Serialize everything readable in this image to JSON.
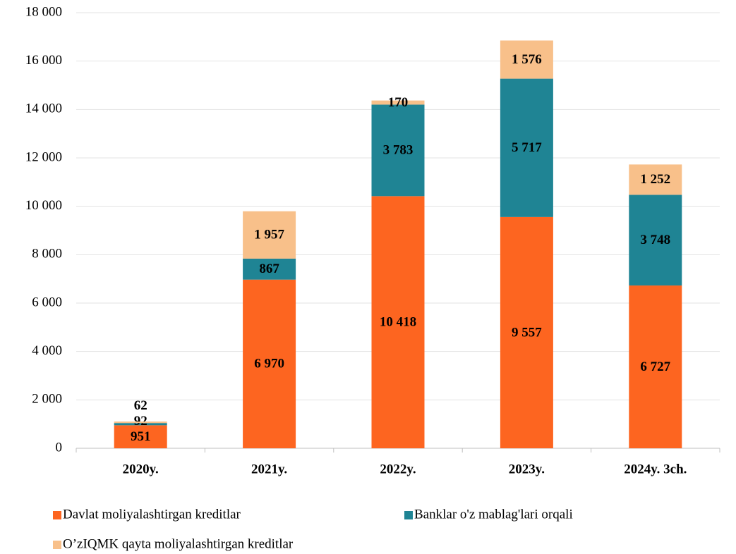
{
  "chart_data": {
    "type": "stacked_bar",
    "categories": [
      "2020y.",
      "2021y.",
      "2022y.",
      "2023y.",
      "2024y. 3ch."
    ],
    "series": [
      {
        "name": "Davlat moliyalashtirgan kreditlar",
        "color": "#fd6520",
        "values": [
          951,
          6970,
          10418,
          9557,
          6727
        ],
        "value_labels": [
          "951",
          "6 970",
          "10 418",
          "9 557",
          "6 727"
        ]
      },
      {
        "name": "Banklar o'z mablag'lari orqali",
        "color": "#1f8494",
        "values": [
          92,
          867,
          3783,
          5717,
          3748
        ],
        "value_labels": [
          "92",
          "867",
          "3 783",
          "5 717",
          "3 748"
        ]
      },
      {
        "name": "O’zIQMK qayta moliyalashtirgan kreditlar",
        "color": "#f8c08a",
        "values": [
          62,
          1957,
          170,
          1576,
          1252
        ],
        "value_labels": [
          "62",
          "1 957",
          "170",
          "1 576",
          "1 252"
        ]
      }
    ],
    "ylim": [
      0,
      18000
    ],
    "yticks": [
      0,
      {
        "value": 2000,
        "label": "2 000"
      },
      {
        "value": 4000,
        "label": "4 000"
      },
      {
        "value": 6000,
        "label": "6 000"
      },
      {
        "value": 8000,
        "label": "8 000"
      },
      {
        "value": 10000,
        "label": "10 000"
      },
      {
        "value": 12000,
        "label": "12 000"
      },
      {
        "value": 14000,
        "label": "14 000"
      },
      {
        "value": 16000,
        "label": "16 000"
      },
      {
        "value": 18000,
        "label": "18 000"
      }
    ],
    "grid": true,
    "legend": "bottom"
  }
}
